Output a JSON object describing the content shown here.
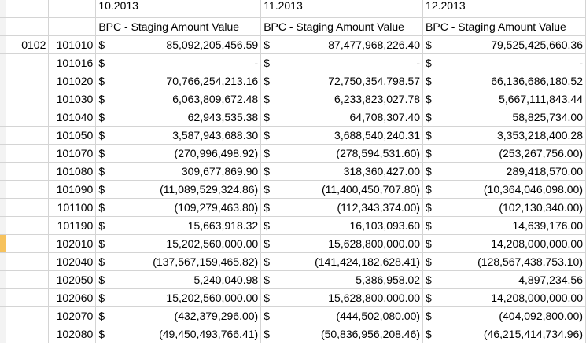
{
  "periods": [
    "10.2013",
    "11.2013",
    "12.2013"
  ],
  "measure": "BPC - Staging Amount Value",
  "currency": "$",
  "entity": "0102",
  "selected_row_index": 11,
  "rows": [
    {
      "account": "101010",
      "values": [
        "85,092,205,456.59",
        "87,477,968,226.40",
        "79,525,425,660.36"
      ]
    },
    {
      "account": "101016",
      "values": [
        "-",
        "-",
        "-"
      ]
    },
    {
      "account": "101020",
      "values": [
        "70,766,254,213.16",
        "72,750,354,798.57",
        "66,136,686,180.52"
      ]
    },
    {
      "account": "101030",
      "values": [
        "6,063,809,672.48",
        "6,233,823,027.78",
        "5,667,111,843.44"
      ]
    },
    {
      "account": "101040",
      "values": [
        "62,943,535.38",
        "64,708,307.40",
        "58,825,734.00"
      ]
    },
    {
      "account": "101050",
      "values": [
        "3,587,943,688.30",
        "3,688,540,240.31",
        "3,353,218,400.28"
      ]
    },
    {
      "account": "101070",
      "values": [
        "(270,996,498.92)",
        "(278,594,531.60)",
        "(253,267,756.00)"
      ]
    },
    {
      "account": "101080",
      "values": [
        "309,677,869.90",
        "318,360,427.00",
        "289,418,570.00"
      ]
    },
    {
      "account": "101090",
      "values": [
        "(11,089,529,324.86)",
        "(11,400,450,707.80)",
        "(10,364,046,098.00)"
      ]
    },
    {
      "account": "101100",
      "values": [
        "(109,279,463.80)",
        "(112,343,374.00)",
        "(102,130,340.00)"
      ]
    },
    {
      "account": "101190",
      "values": [
        "15,663,918.32",
        "16,103,093.60",
        "14,639,176.00"
      ]
    },
    {
      "account": "102010",
      "values": [
        "15,202,560,000.00",
        "15,628,800,000.00",
        "14,208,000,000.00"
      ]
    },
    {
      "account": "102040",
      "values": [
        "(137,567,159,465.82)",
        "(141,424,182,628.41)",
        "(128,567,438,753.10)"
      ]
    },
    {
      "account": "102050",
      "values": [
        "5,240,040.98",
        "5,386,958.02",
        "4,897,234.56"
      ]
    },
    {
      "account": "102060",
      "values": [
        "15,202,560,000.00",
        "15,628,800,000.00",
        "14,208,000,000.00"
      ]
    },
    {
      "account": "102070",
      "values": [
        "(432,379,296.00)",
        "(444,502,080.00)",
        "(404,092,800.00)"
      ]
    },
    {
      "account": "102080",
      "values": [
        "(49,450,493,766.41)",
        "(50,836,956,208.46)",
        "(46,215,414,734.96)"
      ]
    }
  ]
}
